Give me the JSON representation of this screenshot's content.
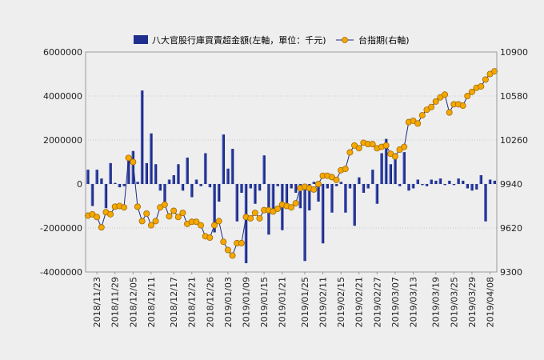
{
  "chart_data": {
    "type": "bar+line",
    "legend": {
      "placement": "top",
      "items": [
        {
          "name": "八大官股行庫買賣超金額(左軸，單位：千元)",
          "kind": "bar",
          "color": "#1f2f8f"
        },
        {
          "name": "台指期(右軸)",
          "kind": "line",
          "color": "#f5a800"
        }
      ]
    },
    "y_left": {
      "min": -4000000,
      "max": 6000000,
      "ticks": [
        "6000000",
        "4000000",
        "2000000",
        "0",
        "-2000000",
        "-4000000"
      ]
    },
    "y_right": {
      "min": 9300,
      "max": 10900,
      "ticks": [
        "10900",
        "10580",
        "10260",
        "9940",
        "9620",
        "9300"
      ]
    },
    "x_tick_labels": [
      "2018/11/23",
      "2018/11/29",
      "2018/12/05",
      "2018/12/11",
      "2018/12/17",
      "2018/12/21",
      "2018/12/26",
      "2019/01/03",
      "2019/01/09",
      "2019/01/15",
      "2019/01/21",
      "2019/01/25",
      "2019/02/11",
      "2019/02/15",
      "2019/02/21",
      "2019/02/27",
      "2019/03/07",
      "2019/03/13",
      "2019/03/19",
      "2019/03/25",
      "2019/03/29",
      "2019/04/08"
    ],
    "bar_values": [
      650000,
      -1000000,
      650000,
      250000,
      -1100000,
      950000,
      50000,
      -150000,
      -100000,
      1100000,
      1500000,
      100000,
      4250000,
      950000,
      2300000,
      900000,
      -300000,
      -800000,
      200000,
      400000,
      900000,
      -300000,
      1200000,
      -600000,
      200000,
      -100000,
      1400000,
      -150000,
      -2200000,
      -800000,
      2250000,
      700000,
      1600000,
      -1700000,
      -400000,
      -3600000,
      -200000,
      -900000,
      -300000,
      1300000,
      -2300000,
      -1200000,
      -100000,
      -2100000,
      -900000,
      -200000,
      -400000,
      -1100000,
      -3500000,
      -1200000,
      100000,
      -800000,
      -2700000,
      -200000,
      -1300000,
      -100000,
      100000,
      -1300000,
      -200000,
      -1900000,
      300000,
      -400000,
      -200000,
      650000,
      -900000,
      1400000,
      2050000,
      900000,
      1400000,
      -100000,
      1450000,
      -300000,
      -200000,
      200000,
      -50000,
      -100000,
      200000,
      150000,
      250000,
      -50000,
      150000,
      -50000,
      250000,
      150000,
      -200000,
      -300000,
      -250000,
      400000,
      -1700000,
      200000,
      150000
    ],
    "line_values": [
      9710,
      9720,
      9700,
      9625,
      9735,
      9720,
      9775,
      9780,
      9770,
      10130,
      10100,
      9775,
      9670,
      9725,
      9640,
      9670,
      9770,
      9790,
      9705,
      9745,
      9700,
      9730,
      9650,
      9665,
      9665,
      9640,
      9560,
      9550,
      9640,
      9670,
      9520,
      9460,
      9420,
      9510,
      9510,
      9700,
      9690,
      9730,
      9690,
      9750,
      9750,
      9740,
      9760,
      9790,
      9780,
      9770,
      9800,
      9910,
      9920,
      9910,
      9900,
      9940,
      10000,
      10000,
      9990,
      9970,
      10040,
      10050,
      10170,
      10220,
      10200,
      10240,
      10230,
      10230,
      10200,
      10210,
      10220,
      10160,
      10140,
      10190,
      10210,
      10390,
      10400,
      10380,
      10440,
      10480,
      10500,
      10540,
      10570,
      10590,
      10460,
      10520,
      10520,
      10510,
      10580,
      10610,
      10640,
      10650,
      10700,
      10740,
      10760
    ]
  }
}
